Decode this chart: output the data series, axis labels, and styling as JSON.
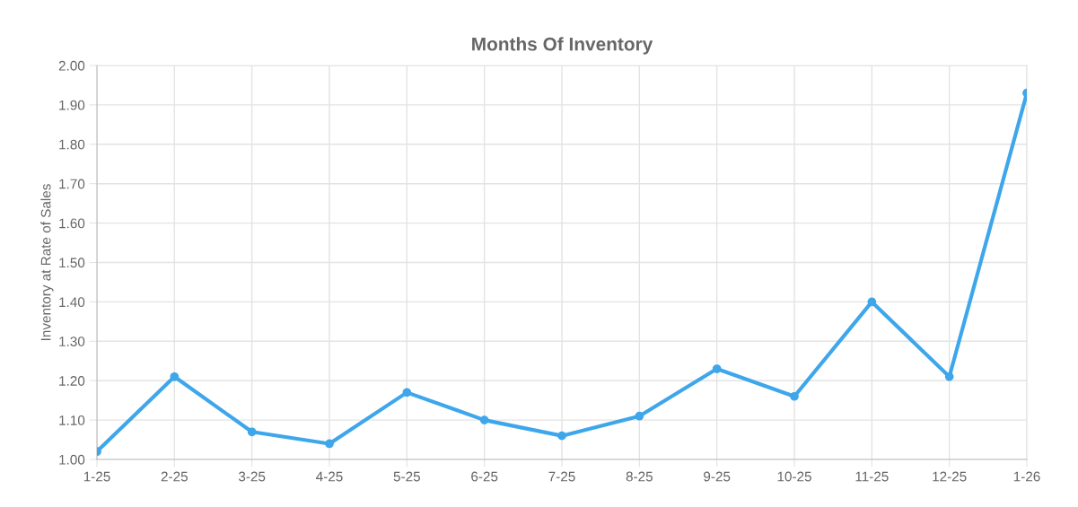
{
  "chart_data": {
    "type": "line",
    "title": "Months Of Inventory",
    "ylabel": "Inventory at Rate of Sales",
    "categories": [
      "1-25",
      "2-25",
      "3-25",
      "4-25",
      "5-25",
      "6-25",
      "7-25",
      "8-25",
      "9-25",
      "10-25",
      "11-25",
      "12-25",
      "1-26"
    ],
    "series": [
      {
        "color": "#3ea6ea",
        "values": [
          1.02,
          1.21,
          1.07,
          1.04,
          1.17,
          1.1,
          1.06,
          1.11,
          1.23,
          1.16,
          1.4,
          1.21,
          1.93
        ]
      }
    ],
    "ylim": [
      1.0,
      2.0
    ],
    "yticks": [
      {
        "value": 1.0,
        "label": "1.00"
      },
      {
        "value": 1.1,
        "label": "1.10"
      },
      {
        "value": 1.2,
        "label": "1.20"
      },
      {
        "value": 1.3,
        "label": "1.30"
      },
      {
        "value": 1.4,
        "label": "1.40"
      },
      {
        "value": 1.5,
        "label": "1.50"
      },
      {
        "value": 1.6,
        "label": "1.60"
      },
      {
        "value": 1.7,
        "label": "1.70"
      },
      {
        "value": 1.8,
        "label": "1.80"
      },
      {
        "value": 1.9,
        "label": "1.90"
      },
      {
        "value": 2.0,
        "label": "2.00"
      }
    ],
    "grid": true,
    "marker": "circle",
    "line_style": "solid"
  }
}
